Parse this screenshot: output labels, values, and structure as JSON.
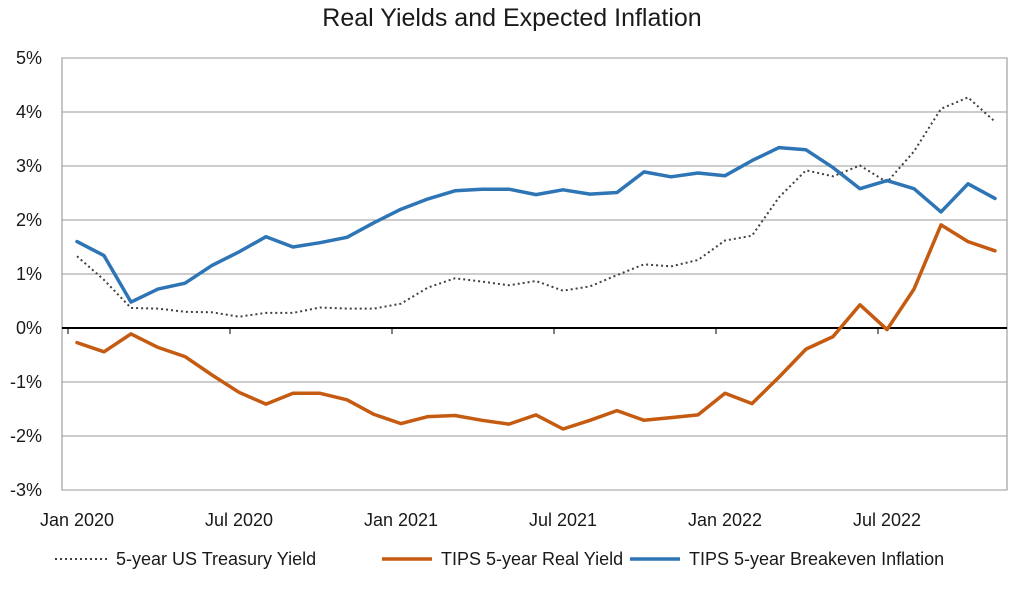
{
  "chart_data": {
    "type": "line",
    "title": "Real Yields and Expected Inflation",
    "xlabel": "",
    "ylabel": "",
    "ylim": [
      -3,
      5
    ],
    "yticks": [
      -3,
      -2,
      -1,
      0,
      1,
      2,
      3,
      4,
      5
    ],
    "ytick_labels": [
      "-3%",
      "-2%",
      "-1%",
      "0%",
      "1%",
      "2%",
      "3%",
      "4%",
      "5%"
    ],
    "x": [
      "2020-01",
      "2020-02",
      "2020-03",
      "2020-04",
      "2020-05",
      "2020-06",
      "2020-07",
      "2020-08",
      "2020-09",
      "2020-10",
      "2020-11",
      "2020-12",
      "2021-01",
      "2021-02",
      "2021-03",
      "2021-04",
      "2021-05",
      "2021-06",
      "2021-07",
      "2021-08",
      "2021-09",
      "2021-10",
      "2021-11",
      "2021-12",
      "2022-01",
      "2022-02",
      "2022-03",
      "2022-04",
      "2022-05",
      "2022-06",
      "2022-07",
      "2022-08",
      "2022-09",
      "2022-10",
      "2022-11"
    ],
    "xtick_labels": [
      {
        "label": "Jan 2020",
        "index": 0
      },
      {
        "label": "Jul 2020",
        "index": 6
      },
      {
        "label": "Jan 2021",
        "index": 12
      },
      {
        "label": "Jul 2021",
        "index": 18
      },
      {
        "label": "Jan 2022",
        "index": 24
      },
      {
        "label": "Jul 2022",
        "index": 30
      }
    ],
    "grid": true,
    "legend_position": "bottom",
    "series": [
      {
        "name": "5-year US Treasury Yield",
        "color": "#404040",
        "style": "dotted",
        "values": [
          1.33,
          0.89,
          0.37,
          0.36,
          0.3,
          0.29,
          0.21,
          0.28,
          0.28,
          0.38,
          0.36,
          0.36,
          0.45,
          0.75,
          0.92,
          0.86,
          0.79,
          0.87,
          0.69,
          0.77,
          0.98,
          1.18,
          1.14,
          1.26,
          1.62,
          1.71,
          2.42,
          2.92,
          2.81,
          3.01,
          2.7,
          3.27,
          4.06,
          4.27,
          3.82
        ]
      },
      {
        "name": "TIPS 5-year Real Yield",
        "color": "#c55a11",
        "style": "solid",
        "values": [
          -0.27,
          -0.44,
          -0.11,
          -0.36,
          -0.53,
          -0.87,
          -1.19,
          -1.41,
          -1.21,
          -1.21,
          -1.33,
          -1.6,
          -1.77,
          -1.64,
          -1.62,
          -1.71,
          -1.78,
          -1.61,
          -1.87,
          -1.71,
          -1.53,
          -1.71,
          -1.66,
          -1.61,
          -1.21,
          -1.4,
          -0.91,
          -0.39,
          -0.16,
          0.43,
          -0.03,
          0.72,
          1.91,
          1.6,
          1.43
        ]
      },
      {
        "name": "TIPS 5-year Breakeven Inflation",
        "color": "#2e75b6",
        "style": "solid",
        "values": [
          1.6,
          1.34,
          0.48,
          0.72,
          0.83,
          1.16,
          1.41,
          1.69,
          1.5,
          1.58,
          1.68,
          1.95,
          2.2,
          2.39,
          2.54,
          2.57,
          2.57,
          2.47,
          2.56,
          2.48,
          2.51,
          2.89,
          2.8,
          2.87,
          2.82,
          3.1,
          3.34,
          3.3,
          2.97,
          2.58,
          2.73,
          2.58,
          2.15,
          2.67,
          2.4
        ]
      }
    ]
  }
}
